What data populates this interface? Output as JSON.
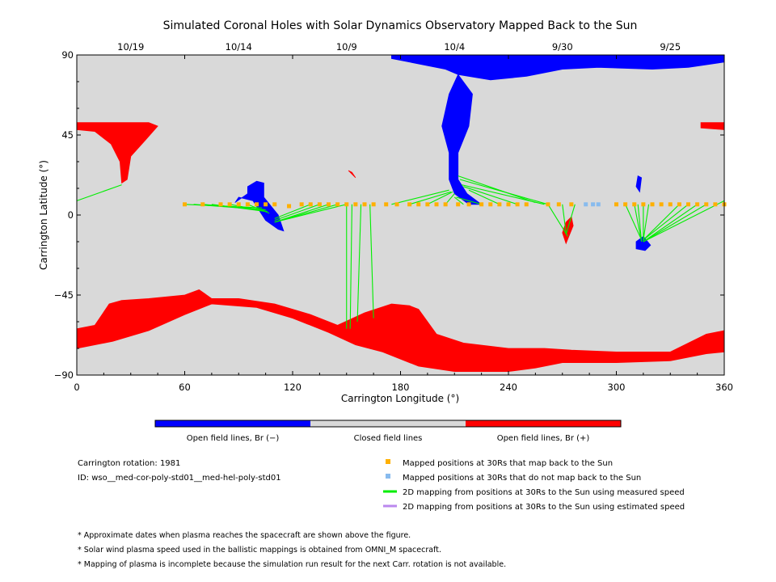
{
  "chart_data": {
    "type": "map",
    "title": "Simulated Coronal Holes with Solar Dynamics Observatory Mapped Back to the Sun",
    "xlabel": "Carrington Longitude (°)",
    "ylabel": "Carrington Latitude (°)",
    "xlim": [
      0,
      360
    ],
    "ylim": [
      -90,
      90
    ],
    "x_ticks": [
      "0",
      "60",
      "120",
      "180",
      "240",
      "300",
      "360"
    ],
    "y_ticks": [
      "−90",
      "−45",
      "0",
      "45",
      "90"
    ],
    "top_date_ticks": [
      {
        "label": "10/19",
        "longitude": 30
      },
      {
        "label": "10/14",
        "longitude": 90
      },
      {
        "label": "10/9",
        "longitude": 150
      },
      {
        "label": "10/4",
        "longitude": 210
      },
      {
        "label": "9/30",
        "longitude": 270
      },
      {
        "label": "9/25",
        "longitude": 330
      }
    ],
    "colorbar": [
      {
        "label": "Open field lines, Br (−)",
        "color": "#0000ff"
      },
      {
        "label": "Closed field lines",
        "color": "#d9d9d9"
      },
      {
        "label": "Open field lines, Br (+)",
        "color": "#ff0000"
      }
    ],
    "regions": {
      "south_polar_hole_positive": {
        "color": "#ff0000",
        "upper": [
          [
            0,
            -64
          ],
          [
            10,
            -62
          ],
          [
            18,
            -50
          ],
          [
            25,
            -48
          ],
          [
            40,
            -47
          ],
          [
            60,
            -45
          ],
          [
            68,
            -42
          ],
          [
            75,
            -47
          ],
          [
            90,
            -47
          ],
          [
            110,
            -50
          ],
          [
            130,
            -56
          ],
          [
            145,
            -62
          ],
          [
            160,
            -55
          ],
          [
            175,
            -50
          ],
          [
            185,
            -51
          ],
          [
            190,
            -53
          ],
          [
            200,
            -67
          ],
          [
            215,
            -72
          ],
          [
            240,
            -75
          ],
          [
            260,
            -75
          ],
          [
            275,
            -76
          ],
          [
            300,
            -77
          ],
          [
            330,
            -77
          ],
          [
            350,
            -67
          ],
          [
            360,
            -65
          ]
        ],
        "lower": [
          [
            0,
            -75
          ],
          [
            20,
            -71
          ],
          [
            40,
            -65
          ],
          [
            60,
            -56
          ],
          [
            75,
            -50
          ],
          [
            100,
            -52
          ],
          [
            120,
            -58
          ],
          [
            140,
            -66
          ],
          [
            155,
            -73
          ],
          [
            170,
            -77
          ],
          [
            190,
            -85
          ],
          [
            210,
            -88
          ],
          [
            240,
            -88
          ],
          [
            255,
            -86
          ],
          [
            270,
            -83
          ],
          [
            300,
            -83
          ],
          [
            330,
            -82
          ],
          [
            350,
            -78
          ],
          [
            360,
            -77
          ]
        ]
      },
      "north_polar_hole_negative": {
        "color": "#0000ff",
        "upper": [
          [
            175,
            90
          ],
          [
            360,
            90
          ]
        ],
        "lower": [
          [
            175,
            88
          ],
          [
            195,
            84
          ],
          [
            205,
            82
          ],
          [
            212,
            79
          ],
          [
            230,
            76
          ],
          [
            250,
            78
          ],
          [
            270,
            82
          ],
          [
            290,
            83
          ],
          [
            320,
            82
          ],
          [
            340,
            83
          ],
          [
            360,
            86
          ]
        ]
      },
      "neck_negative": {
        "color": "#0000ff",
        "upper": [
          [
            212,
            79
          ],
          [
            220,
            68
          ],
          [
            218,
            50
          ],
          [
            212,
            35
          ],
          [
            212,
            20
          ],
          [
            217,
            12
          ],
          [
            225,
            6
          ]
        ],
        "lower": [
          [
            212,
            79
          ],
          [
            207,
            68
          ],
          [
            203,
            50
          ],
          [
            207,
            35
          ],
          [
            207,
            20
          ],
          [
            210,
            12
          ],
          [
            218,
            6
          ]
        ]
      },
      "north_hole_positive_left": {
        "color": "#ff0000",
        "outline": [
          [
            0,
            52
          ],
          [
            15,
            52
          ],
          [
            40,
            52
          ],
          [
            45,
            50
          ],
          [
            38,
            42
          ],
          [
            30,
            33
          ],
          [
            28,
            20
          ],
          [
            25,
            18
          ],
          [
            24,
            30
          ],
          [
            19,
            40
          ],
          [
            10,
            47
          ],
          [
            0,
            48
          ]
        ]
      },
      "north_hole_positive_right": {
        "color": "#ff0000",
        "outline": [
          [
            347,
            52
          ],
          [
            360,
            52
          ],
          [
            360,
            48
          ],
          [
            347,
            49
          ]
        ]
      },
      "small_hole_negative_100": {
        "color": "#0000ff",
        "outline": [
          [
            95,
            16
          ],
          [
            100,
            19
          ],
          [
            104,
            18
          ],
          [
            104,
            10
          ],
          [
            112,
            0
          ],
          [
            115,
            -9
          ],
          [
            112,
            -8
          ],
          [
            105,
            -3
          ],
          [
            98,
            8
          ],
          [
            90,
            10
          ],
          [
            88,
            7
          ],
          [
            95,
            12
          ]
        ]
      },
      "small_hole_negative_315": {
        "color": "#0000ff",
        "outline": [
          [
            311,
            -15
          ],
          [
            315,
            -12
          ],
          [
            319,
            -17
          ],
          [
            316,
            -20
          ],
          [
            311,
            -19
          ]
        ]
      },
      "small_hole_negative_313": {
        "color": "#0000ff",
        "outline": [
          [
            312,
            22
          ],
          [
            314,
            21
          ],
          [
            313,
            13
          ],
          [
            311,
            16
          ]
        ]
      },
      "small_hole_positive_275": {
        "color": "#ff0000",
        "outline": [
          [
            272,
            -16
          ],
          [
            276,
            -6
          ],
          [
            275,
            -1
          ],
          [
            272,
            -4
          ],
          [
            270,
            -10
          ]
        ]
      },
      "small_hole_positive_152": {
        "color": "#ff0000",
        "outline": [
          [
            151,
            25
          ],
          [
            154,
            22
          ],
          [
            155,
            21
          ],
          [
            153,
            24
          ]
        ]
      }
    },
    "mapped_points_back_to_sun": [
      [
        60,
        6
      ],
      [
        70,
        6
      ],
      [
        80,
        6
      ],
      [
        85,
        6
      ],
      [
        90,
        6
      ],
      [
        95,
        6
      ],
      [
        100,
        6
      ],
      [
        105,
        6
      ],
      [
        110,
        6
      ],
      [
        118,
        5
      ],
      [
        125,
        6
      ],
      [
        130,
        6
      ],
      [
        135,
        6
      ],
      [
        140,
        6
      ],
      [
        145,
        6
      ],
      [
        150,
        6
      ],
      [
        155,
        6
      ],
      [
        160,
        6
      ],
      [
        165,
        6
      ],
      [
        172,
        6
      ],
      [
        178,
        6
      ],
      [
        185,
        6
      ],
      [
        190,
        6
      ],
      [
        195,
        6
      ],
      [
        200,
        6
      ],
      [
        205,
        6
      ],
      [
        212,
        6
      ],
      [
        218,
        6
      ],
      [
        225,
        6
      ],
      [
        230,
        6
      ],
      [
        235,
        6
      ],
      [
        240,
        6
      ],
      [
        245,
        6
      ],
      [
        250,
        6
      ],
      [
        262,
        6
      ],
      [
        268,
        6
      ],
      [
        275,
        6
      ],
      [
        300,
        6
      ],
      [
        305,
        6
      ],
      [
        310,
        6
      ],
      [
        315,
        6
      ],
      [
        320,
        6
      ],
      [
        325,
        6
      ],
      [
        330,
        6
      ],
      [
        335,
        6
      ],
      [
        340,
        6
      ],
      [
        345,
        6
      ],
      [
        350,
        6
      ],
      [
        355,
        6
      ],
      [
        360,
        6
      ]
    ],
    "mapped_points_not_back": [
      [
        283,
        6
      ],
      [
        287,
        6
      ],
      [
        290,
        6
      ]
    ],
    "mapping_lines_measured_speed": [
      [
        [
          0,
          8
        ],
        [
          25,
          17
        ]
      ],
      [
        [
          60,
          6
        ],
        [
          103,
          4
        ]
      ],
      [
        [
          65,
          6
        ],
        [
          104,
          3
        ]
      ],
      [
        [
          70,
          6
        ],
        [
          105,
          3
        ]
      ],
      [
        [
          75,
          6
        ],
        [
          105,
          2
        ]
      ],
      [
        [
          85,
          6
        ],
        [
          106,
          2
        ]
      ],
      [
        [
          95,
          6
        ],
        [
          107,
          1
        ]
      ],
      [
        [
          110,
          -2
        ],
        [
          130,
          6
        ]
      ],
      [
        [
          110,
          -3
        ],
        [
          135,
          6
        ]
      ],
      [
        [
          110,
          -4
        ],
        [
          140,
          6
        ]
      ],
      [
        [
          110,
          -4
        ],
        [
          145,
          6
        ]
      ],
      [
        [
          110,
          -4
        ],
        [
          150,
          6
        ]
      ],
      [
        [
          150,
          6
        ],
        [
          150,
          -64
        ]
      ],
      [
        [
          153,
          6
        ],
        [
          152,
          -64
        ]
      ],
      [
        [
          158,
          6
        ],
        [
          156,
          -60
        ]
      ],
      [
        [
          163,
          6
        ],
        [
          165,
          -58
        ]
      ],
      [
        [
          175,
          6
        ],
        [
          207,
          14
        ]
      ],
      [
        [
          185,
          6
        ],
        [
          208,
          13
        ]
      ],
      [
        [
          195,
          6
        ],
        [
          209,
          13
        ]
      ],
      [
        [
          205,
          6
        ],
        [
          210,
          12
        ]
      ],
      [
        [
          215,
          6
        ],
        [
          210,
          10
        ]
      ],
      [
        [
          225,
          6
        ],
        [
          211,
          10
        ]
      ],
      [
        [
          212,
          22
        ],
        [
          255,
          7
        ]
      ],
      [
        [
          213,
          20
        ],
        [
          262,
          6
        ]
      ],
      [
        [
          214,
          17
        ],
        [
          260,
          6
        ]
      ],
      [
        [
          215,
          16
        ],
        [
          245,
          6
        ]
      ],
      [
        [
          218,
          14
        ],
        [
          235,
          6
        ]
      ],
      [
        [
          262,
          6
        ],
        [
          273,
          -12
        ]
      ],
      [
        [
          270,
          6
        ],
        [
          272,
          -10
        ]
      ],
      [
        [
          277,
          6
        ],
        [
          272,
          -11
        ]
      ],
      [
        [
          305,
          6
        ],
        [
          314,
          -14
        ]
      ],
      [
        [
          310,
          6
        ],
        [
          314,
          -15
        ]
      ],
      [
        [
          312,
          6
        ],
        [
          314,
          -15
        ]
      ],
      [
        [
          315,
          6
        ],
        [
          315,
          -15
        ]
      ],
      [
        [
          318,
          6
        ],
        [
          315,
          -14
        ]
      ],
      [
        [
          335,
          6
        ],
        [
          315,
          -14
        ]
      ],
      [
        [
          340,
          6
        ],
        [
          315,
          -14
        ]
      ],
      [
        [
          345,
          6
        ],
        [
          315,
          -15
        ]
      ],
      [
        [
          350,
          6
        ],
        [
          315,
          -15
        ]
      ],
      [
        [
          360,
          8
        ],
        [
          315,
          -15
        ]
      ]
    ],
    "mapping_lines_estimated_speed": []
  },
  "legend": {
    "mapped_back": {
      "label": "Mapped positions at 30Rs that map back to the Sun",
      "color": "#ffb000"
    },
    "not_mapped_back": {
      "label": "Mapped positions at 30Rs that do not map back to the Sun",
      "color": "#88bbee"
    },
    "measured_speed": {
      "label": "2D mapping from positions at 30Rs to the Sun using measured speed",
      "color": "#00ee00"
    },
    "estimated_speed": {
      "label": "2D mapping from positions at 30Rs to the Sun using estimated speed",
      "color": "#bb88ee"
    }
  },
  "info": {
    "rotation": "Carrington rotation: 1981",
    "id": "ID: wso__med-cor-poly-std01__med-hel-poly-std01"
  },
  "notes": [
    "* Approximate dates when plasma reaches the spacecraft are shown above the figure.",
    "* Solar wind plasma speed used in the ballistic mappings is obtained from OMNI_M spacecraft.",
    "* Mapping of plasma is incomplete because the simulation run result for the next Carr. rotation is not available."
  ],
  "colors": {
    "background": "#d9d9d9",
    "negative": "#0000ff",
    "positive": "#ff0000"
  }
}
